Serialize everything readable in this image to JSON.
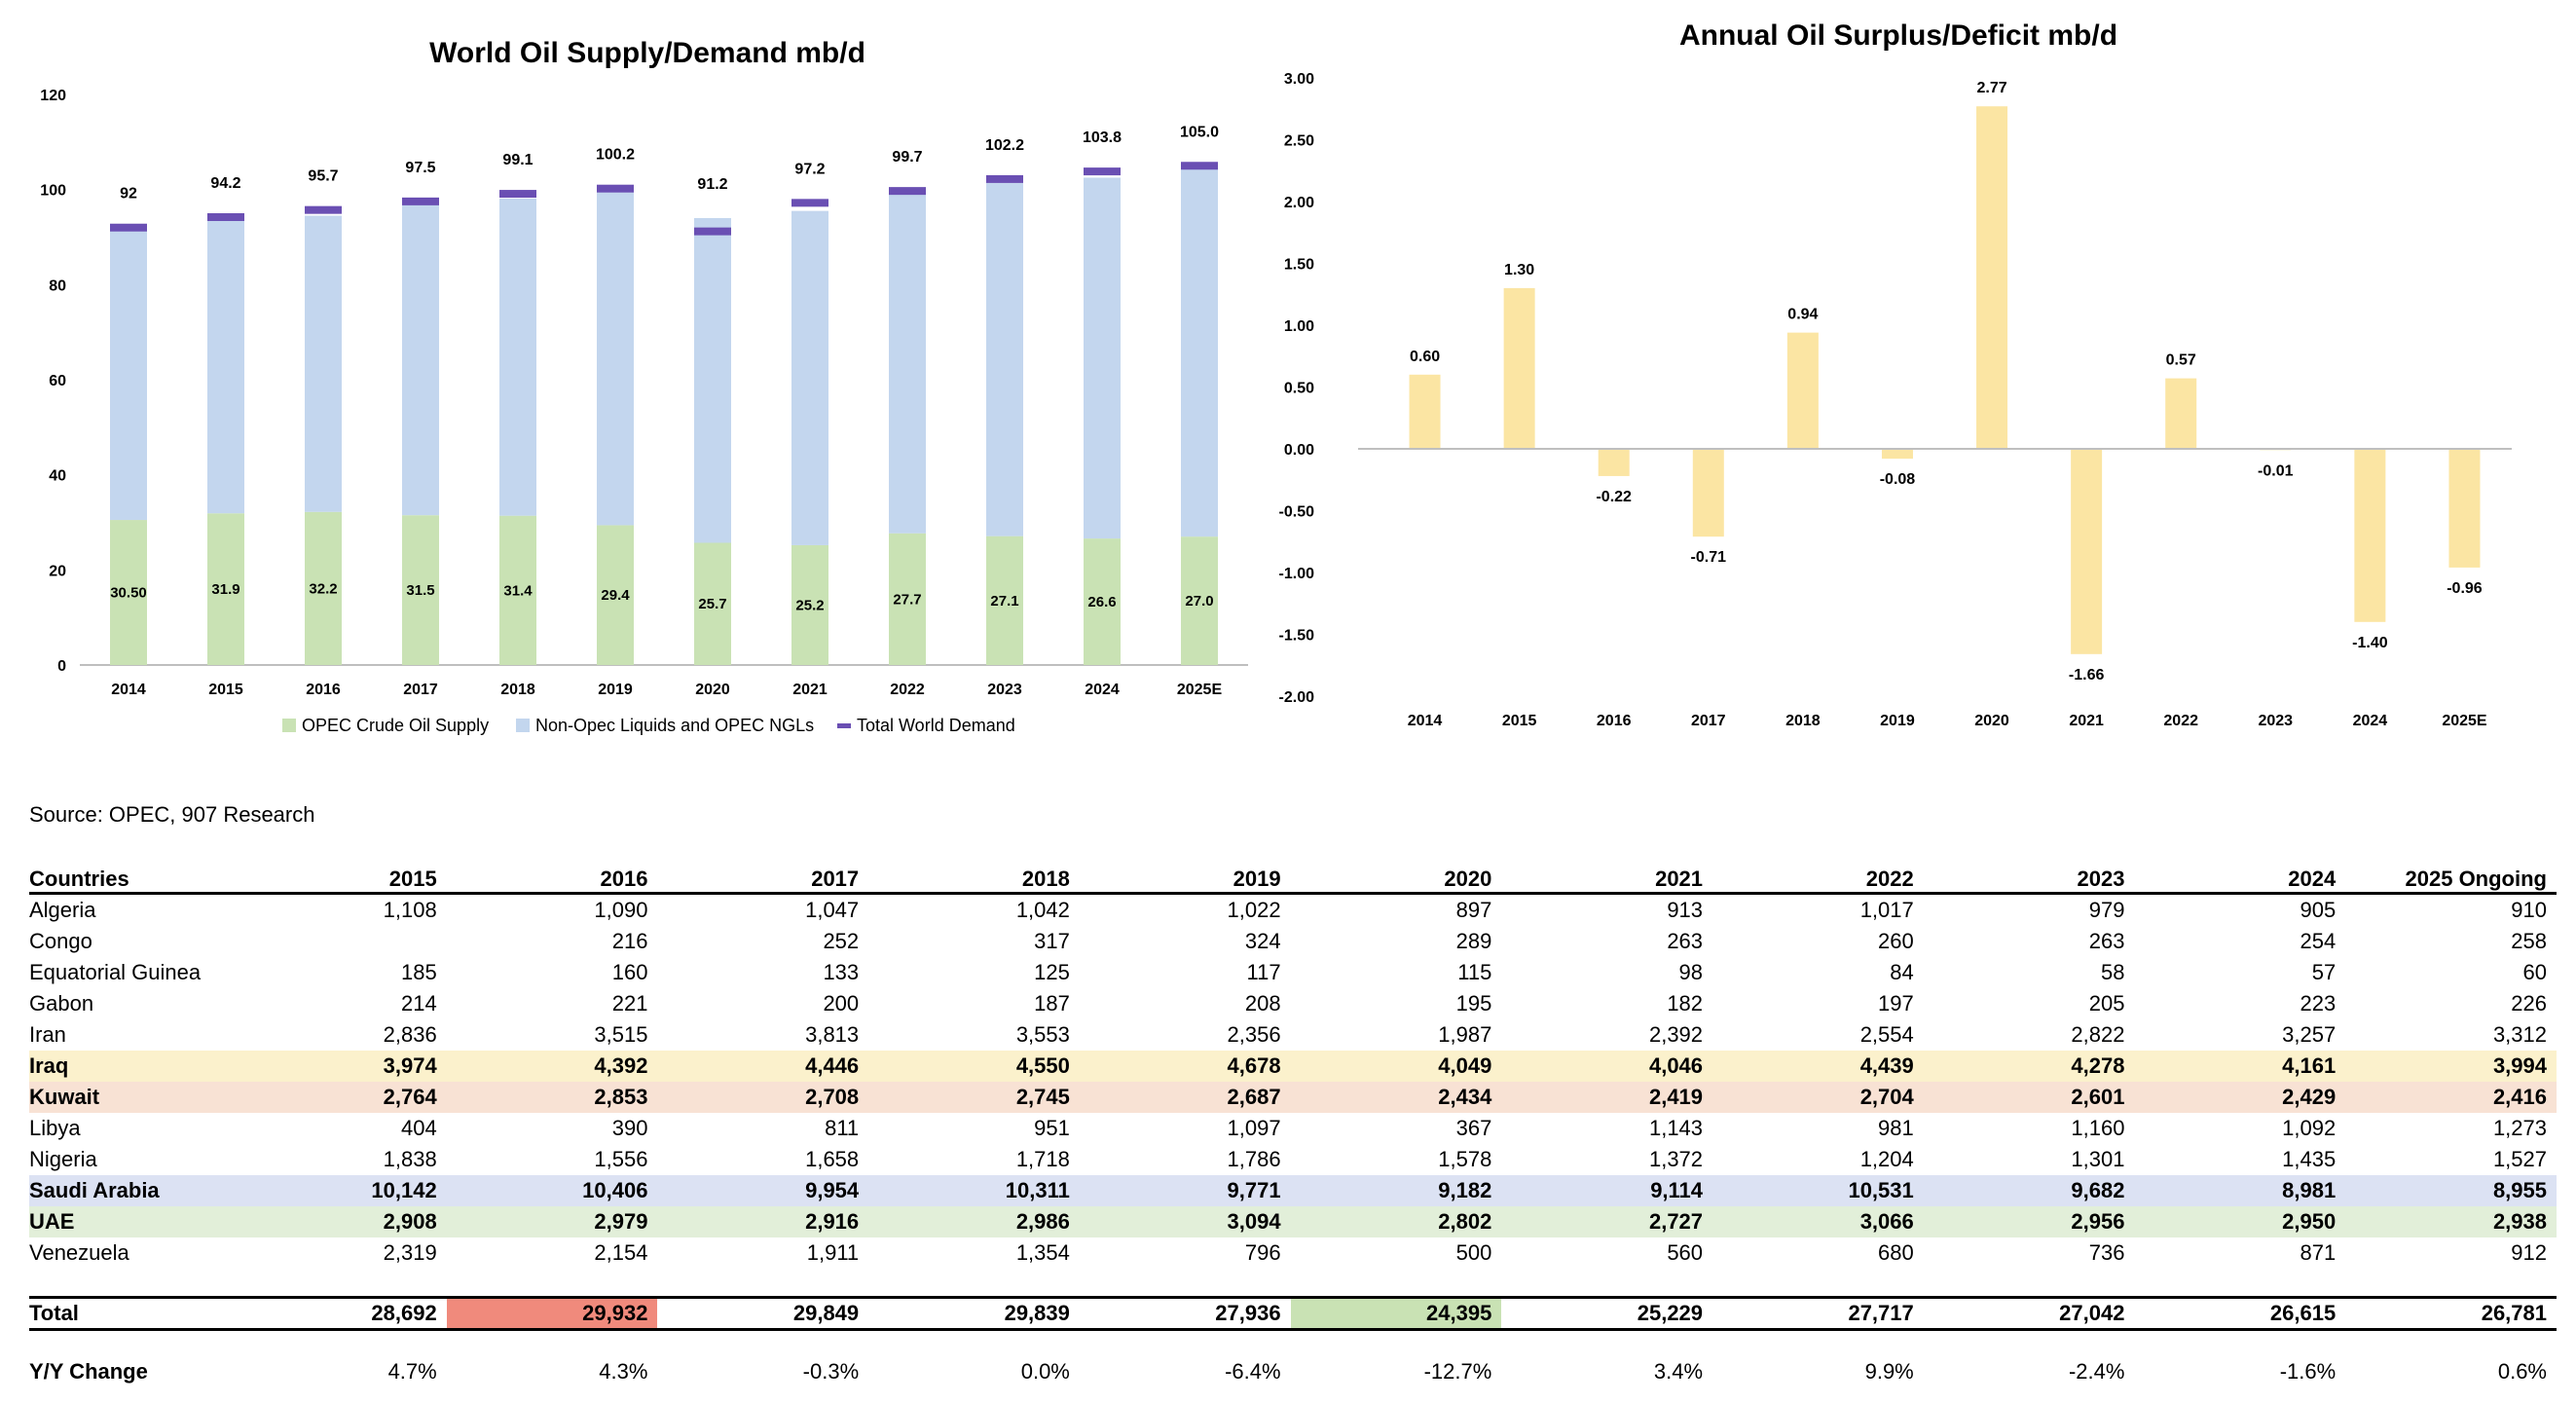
{
  "chart_data": [
    {
      "type": "bar",
      "title": "World Oil Supply/Demand mb/d",
      "categories": [
        "2014",
        "2015",
        "2016",
        "2017",
        "2018",
        "2019",
        "2020",
        "2021",
        "2022",
        "2023",
        "2024",
        "2025E"
      ],
      "series": [
        {
          "name": "OPEC Crude Oil Supply",
          "values": [
            30.5,
            31.9,
            32.2,
            31.5,
            31.4,
            29.4,
            25.7,
            25.2,
            27.7,
            27.1,
            26.6,
            27.0
          ],
          "labels": [
            "30.50",
            "31.9",
            "32.2",
            "31.5",
            "31.4",
            "29.4",
            "25.7",
            "25.2",
            "27.7",
            "27.1",
            "26.6",
            "27.0"
          ],
          "color": "#c9e2b4"
        },
        {
          "name": "Non-Opec Liquids and OPEC NGLs",
          "values": [
            60.9,
            61.6,
            62.3,
            65.3,
            66.7,
            70.2,
            68.3,
            70.3,
            71.5,
            74.3,
            75.9,
            77.6
          ],
          "color": "#c3d6ee"
        },
        {
          "name": "Total World Demand",
          "values": [
            92.0,
            94.2,
            95.7,
            97.5,
            99.1,
            100.2,
            91.2,
            97.2,
            99.7,
            102.2,
            103.8,
            105.0
          ],
          "labels": [
            "92",
            "94.2",
            "95.7",
            "97.5",
            "99.1",
            "100.2",
            "91.2",
            "97.2",
            "99.7",
            "102.2",
            "103.8",
            "105.0"
          ],
          "color": "#6a4fb3"
        }
      ],
      "ylim": [
        0,
        120
      ],
      "yticks": [
        0,
        20,
        40,
        60,
        80,
        100,
        120
      ],
      "legend": "bottom",
      "grid": false
    },
    {
      "type": "bar",
      "title": "Annual Oil Surplus/Deficit mb/d",
      "categories": [
        "2014",
        "2015",
        "2016",
        "2017",
        "2018",
        "2019",
        "2020",
        "2021",
        "2022",
        "2023",
        "2024",
        "2025E"
      ],
      "values": [
        0.6,
        1.3,
        -0.22,
        -0.71,
        0.94,
        -0.08,
        2.77,
        -1.66,
        0.57,
        -0.01,
        -1.4,
        -0.96
      ],
      "labels": [
        "0.60",
        "1.30",
        "-0.22",
        "-0.71",
        "0.94",
        "-0.08",
        "2.77",
        "-1.66",
        "0.57",
        "-0.01",
        "-1.40",
        "-0.96"
      ],
      "color": "#fbe5a3",
      "ylim": [
        -2.0,
        3.0
      ],
      "yticks": [
        "3.00",
        "2.50",
        "2.00",
        "1.50",
        "1.00",
        "0.50",
        "0.00",
        "-0.50",
        "-1.00",
        "-1.50",
        "-2.00"
      ],
      "grid": false
    }
  ],
  "source": "Source: OPEC, 907 Research",
  "table": {
    "headers": [
      "Countries",
      "2015",
      "2016",
      "2017",
      "2018",
      "2019",
      "2020",
      "2021",
      "2022",
      "2023",
      "2024",
      "2025 Ongoing"
    ],
    "rows": [
      {
        "name": "Algeria",
        "values": [
          "1,108",
          "1,090",
          "1,047",
          "1,042",
          "1,022",
          "897",
          "913",
          "1,017",
          "979",
          "905",
          "910"
        ]
      },
      {
        "name": "Congo",
        "values": [
          "",
          "216",
          "252",
          "317",
          "324",
          "289",
          "263",
          "260",
          "263",
          "254",
          "258"
        ]
      },
      {
        "name": "Equatorial Guinea",
        "values": [
          "185",
          "160",
          "133",
          "125",
          "117",
          "115",
          "98",
          "84",
          "58",
          "57",
          "60"
        ]
      },
      {
        "name": "Gabon",
        "values": [
          "214",
          "221",
          "200",
          "187",
          "208",
          "195",
          "182",
          "197",
          "205",
          "223",
          "226"
        ]
      },
      {
        "name": "Iran",
        "values": [
          "2,836",
          "3,515",
          "3,813",
          "3,553",
          "2,356",
          "1,987",
          "2,392",
          "2,554",
          "2,822",
          "3,257",
          "3,312"
        ]
      },
      {
        "name": "Iraq",
        "values": [
          "3,974",
          "4,392",
          "4,446",
          "4,550",
          "4,678",
          "4,049",
          "4,046",
          "4,439",
          "4,278",
          "4,161",
          "3,994"
        ],
        "highlight": "#fbf1cc",
        "bold": true
      },
      {
        "name": "Kuwait",
        "values": [
          "2,764",
          "2,853",
          "2,708",
          "2,745",
          "2,687",
          "2,434",
          "2,419",
          "2,704",
          "2,601",
          "2,429",
          "2,416"
        ],
        "highlight": "#f8e2d4",
        "bold": true
      },
      {
        "name": "Libya",
        "values": [
          "404",
          "390",
          "811",
          "951",
          "1,097",
          "367",
          "1,143",
          "981",
          "1,160",
          "1,092",
          "1,273"
        ]
      },
      {
        "name": "Nigeria",
        "values": [
          "1,838",
          "1,556",
          "1,658",
          "1,718",
          "1,786",
          "1,578",
          "1,372",
          "1,204",
          "1,301",
          "1,435",
          "1,527"
        ]
      },
      {
        "name": "Saudi Arabia",
        "values": [
          "10,142",
          "10,406",
          "9,954",
          "10,311",
          "9,771",
          "9,182",
          "9,114",
          "10,531",
          "9,682",
          "8,981",
          "8,955"
        ],
        "highlight": "#dce2f3",
        "bold": true
      },
      {
        "name": "UAE",
        "values": [
          "2,908",
          "2,979",
          "2,916",
          "2,986",
          "3,094",
          "2,802",
          "2,727",
          "3,066",
          "2,956",
          "2,950",
          "2,938"
        ],
        "highlight": "#e2efd9",
        "bold": true
      },
      {
        "name": "Venezuela",
        "values": [
          "2,319",
          "2,154",
          "1,911",
          "1,354",
          "796",
          "500",
          "560",
          "680",
          "736",
          "871",
          "912"
        ]
      }
    ],
    "total": {
      "name": "Total",
      "values": [
        "28,692",
        "29,932",
        "29,849",
        "29,839",
        "27,936",
        "24,395",
        "25,229",
        "27,717",
        "27,042",
        "26,615",
        "26,781"
      ],
      "max_color": "#f08a7c",
      "min_color": "#c9e2b4"
    },
    "yoy": {
      "name": "Y/Y Change",
      "values": [
        "4.7%",
        "4.3%",
        "-0.3%",
        "0.0%",
        "-6.4%",
        "-12.7%",
        "3.4%",
        "9.9%",
        "-2.4%",
        "-1.6%",
        "0.6%"
      ]
    }
  }
}
